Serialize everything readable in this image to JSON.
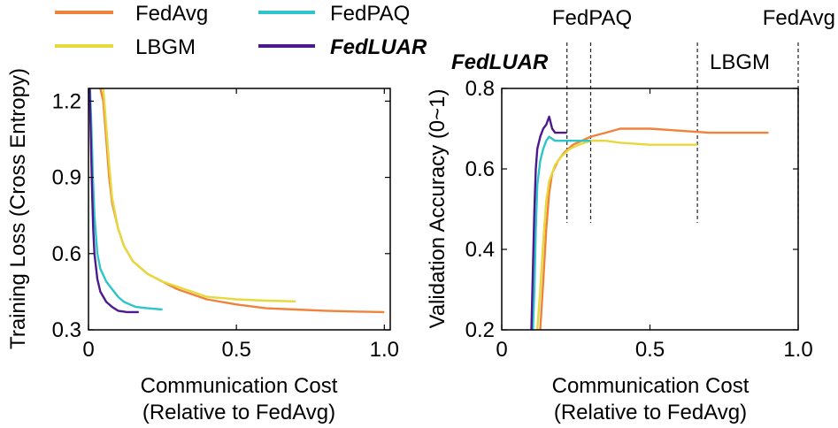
{
  "legend": [
    {
      "name": "FedAvg",
      "color": "#f0823c",
      "emphasis": false
    },
    {
      "name": "FedPAQ",
      "color": "#2ec4cc",
      "emphasis": false
    },
    {
      "name": "LBGM",
      "color": "#e6d93c",
      "emphasis": false
    },
    {
      "name": "FedLUAR",
      "color": "#4b1a8c",
      "emphasis": true
    }
  ],
  "chart_data": [
    {
      "type": "line",
      "title": "",
      "xlabel": "Communication Cost",
      "xlabel2": "(Relative to FedAvg)",
      "ylabel": "Training Loss (Cross Entropy)",
      "xlim": [
        0,
        1.02
      ],
      "ylim": [
        0.3,
        1.25
      ],
      "xticks": [
        0,
        0.5,
        1.0
      ],
      "xtick_labels": [
        "0",
        "0.5",
        "1.0"
      ],
      "yticks": [
        0.3,
        0.6,
        0.9,
        1.2
      ],
      "ytick_labels": [
        "0.3",
        "0.6",
        "0.9",
        "1.2"
      ],
      "series": [
        {
          "name": "FedAvg",
          "color": "#f0823c",
          "x": [
            0.04,
            0.05,
            0.06,
            0.07,
            0.08,
            0.1,
            0.12,
            0.15,
            0.2,
            0.25,
            0.3,
            0.35,
            0.4,
            0.5,
            0.6,
            0.7,
            0.8,
            0.9,
            1.0
          ],
          "y": [
            1.25,
            1.2,
            1.05,
            0.9,
            0.8,
            0.7,
            0.63,
            0.57,
            0.52,
            0.49,
            0.46,
            0.44,
            0.42,
            0.4,
            0.385,
            0.38,
            0.375,
            0.372,
            0.37
          ]
        },
        {
          "name": "LBGM",
          "color": "#e6d93c",
          "x": [
            0.05,
            0.06,
            0.07,
            0.08,
            0.1,
            0.12,
            0.15,
            0.2,
            0.25,
            0.3,
            0.35,
            0.4,
            0.5,
            0.6,
            0.7
          ],
          "y": [
            1.25,
            1.1,
            0.95,
            0.82,
            0.7,
            0.63,
            0.57,
            0.52,
            0.49,
            0.47,
            0.45,
            0.43,
            0.42,
            0.415,
            0.412
          ]
        },
        {
          "name": "FedPAQ",
          "color": "#2ec4cc",
          "x": [
            0.005,
            0.01,
            0.015,
            0.02,
            0.03,
            0.04,
            0.06,
            0.08,
            0.1,
            0.12,
            0.14,
            0.16,
            0.2,
            0.25
          ],
          "y": [
            1.25,
            1.1,
            0.9,
            0.75,
            0.6,
            0.54,
            0.49,
            0.46,
            0.43,
            0.41,
            0.4,
            0.39,
            0.385,
            0.38
          ]
        },
        {
          "name": "FedLUAR",
          "color": "#4b1a8c",
          "x": [
            0.004,
            0.008,
            0.012,
            0.016,
            0.02,
            0.03,
            0.04,
            0.06,
            0.08,
            0.1,
            0.13,
            0.17
          ],
          "y": [
            1.25,
            1.05,
            0.85,
            0.7,
            0.6,
            0.5,
            0.45,
            0.41,
            0.39,
            0.375,
            0.37,
            0.37
          ]
        }
      ]
    },
    {
      "type": "line",
      "title": "",
      "xlabel": "Communication Cost",
      "xlabel2": "(Relative to FedAvg)",
      "ylabel": "Validation Accuracy (0~1)",
      "xlim": [
        0,
        1.0
      ],
      "ylim": [
        0.2,
        0.8
      ],
      "xticks": [
        0,
        0.5,
        1.0
      ],
      "xtick_labels": [
        "0",
        "0.5",
        "1.0"
      ],
      "yticks": [
        0.2,
        0.4,
        0.6,
        0.8
      ],
      "ytick_labels": [
        "0.2",
        "0.4",
        "0.6",
        "0.8"
      ],
      "series": [
        {
          "name": "FedAvg",
          "color": "#f0823c",
          "x": [
            0.13,
            0.14,
            0.15,
            0.16,
            0.17,
            0.19,
            0.21,
            0.24,
            0.27,
            0.3,
            0.35,
            0.4,
            0.45,
            0.5,
            0.6,
            0.7,
            0.8,
            0.9
          ],
          "y": [
            0.2,
            0.32,
            0.45,
            0.54,
            0.59,
            0.62,
            0.64,
            0.66,
            0.67,
            0.68,
            0.69,
            0.7,
            0.7,
            0.7,
            0.695,
            0.69,
            0.69,
            0.69
          ]
        },
        {
          "name": "LBGM",
          "color": "#e6d93c",
          "x": [
            0.12,
            0.13,
            0.14,
            0.15,
            0.16,
            0.18,
            0.2,
            0.23,
            0.26,
            0.3,
            0.35,
            0.4,
            0.5,
            0.6,
            0.66
          ],
          "y": [
            0.2,
            0.3,
            0.42,
            0.52,
            0.57,
            0.61,
            0.63,
            0.65,
            0.66,
            0.67,
            0.67,
            0.665,
            0.66,
            0.66,
            0.66
          ]
        },
        {
          "name": "FedPAQ",
          "color": "#2ec4cc",
          "x": [
            0.105,
            0.11,
            0.115,
            0.12,
            0.13,
            0.14,
            0.15,
            0.16,
            0.18,
            0.2,
            0.22,
            0.24,
            0.3
          ],
          "y": [
            0.2,
            0.3,
            0.45,
            0.56,
            0.62,
            0.65,
            0.67,
            0.68,
            0.67,
            0.67,
            0.67,
            0.67,
            0.67
          ]
        },
        {
          "name": "FedLUAR",
          "color": "#4b1a8c",
          "x": [
            0.1,
            0.105,
            0.11,
            0.115,
            0.12,
            0.13,
            0.14,
            0.15,
            0.16,
            0.17,
            0.18,
            0.2,
            0.22
          ],
          "y": [
            0.2,
            0.35,
            0.5,
            0.6,
            0.65,
            0.68,
            0.7,
            0.71,
            0.73,
            0.7,
            0.69,
            0.69,
            0.69
          ]
        }
      ],
      "vlines": [
        {
          "label": "FedLUAR",
          "x": 0.22,
          "emphasis": true
        },
        {
          "label": "FedPAQ",
          "x": 0.3,
          "emphasis": false
        },
        {
          "label": "LBGM",
          "x": 0.66,
          "emphasis": false
        },
        {
          "label": "FedAvg",
          "x": 1.0,
          "emphasis": false
        }
      ]
    }
  ]
}
